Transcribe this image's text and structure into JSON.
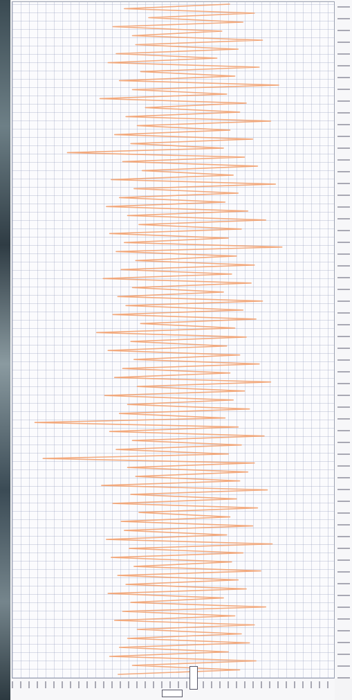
{
  "chart_data": {
    "type": "line",
    "orientation": "vertical",
    "series": [
      {
        "color": "#f2a06e",
        "values": [
          30,
          -35,
          45,
          -20,
          38,
          -42,
          25,
          -30,
          50,
          -28,
          35,
          -40,
          22,
          -45,
          48,
          -25,
          33,
          -38,
          60,
          -30,
          28,
          -50,
          40,
          -22,
          36,
          -34,
          55,
          -27,
          30,
          -41,
          44,
          -31,
          26,
          -70,
          39,
          -36,
          47,
          -24,
          32,
          -43,
          58,
          -29,
          35,
          -38,
          27,
          -46,
          41,
          -33,
          52,
          -26,
          37,
          -44,
          29,
          -35,
          62,
          -40,
          34,
          -28,
          45,
          -37,
          31,
          -48,
          43,
          -30,
          26,
          -39,
          50,
          -34,
          38,
          -42,
          46,
          -25,
          33,
          -52,
          40,
          -31,
          28,
          -45,
          36,
          -29,
          48,
          -36,
          30,
          -41,
          55,
          -27,
          39,
          -47,
          32,
          -33,
          42,
          -38,
          27,
          -90,
          35,
          -44,
          51,
          -30,
          37,
          -40,
          29,
          -85,
          45,
          -33,
          41,
          -28,
          36,
          -49,
          53,
          -31,
          34,
          -42,
          47,
          -26,
          30,
          -37,
          44,
          -35,
          28,
          -46,
          56,
          -32,
          38,
          -43,
          31,
          -29,
          49,
          -39,
          35,
          -34,
          40,
          -45,
          26,
          -31,
          52,
          -36,
          33,
          -41,
          45,
          -27,
          37,
          -33,
          42,
          -38,
          29,
          -44,
          46,
          -30,
          36,
          -39
        ]
      }
    ],
    "xlim": [
      -100,
      100
    ]
  }
}
